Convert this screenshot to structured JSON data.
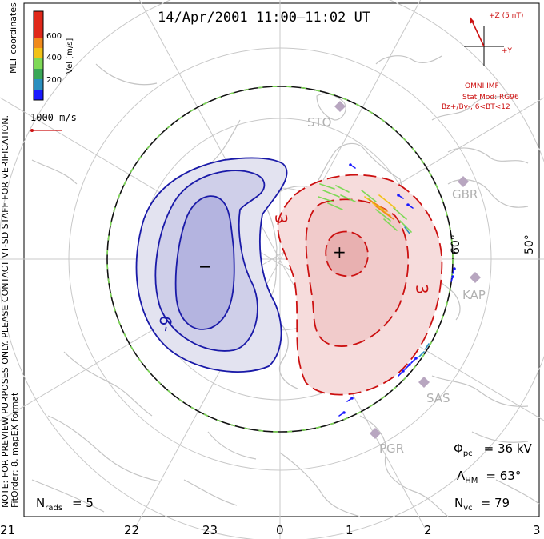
{
  "title": "14/Apr/2001 11:00–11:02 UT",
  "side_notes": {
    "coords": "MLT coordinates",
    "note": "NOTE: FOR PREVIEW PURPOSES ONLY. PLEASE CONTACT VT-SD STAFF FOR VERIFICATION.",
    "fit": "FitOrder: 8, mapEX format"
  },
  "velocity_scale": {
    "label": "Vel [m/s]",
    "ticks": [
      "200",
      "400",
      "600"
    ],
    "colors": [
      "#1a1aff",
      "#2b8fbf",
      "#3aa757",
      "#7ed957",
      "#f2c218",
      "#f08a1c",
      "#e0281a"
    ]
  },
  "reference_vector": {
    "label": "1000 m/s",
    "color": "#cc1111"
  },
  "imf": {
    "z_label": "+Z (5 nT)",
    "y_label": "+Y",
    "source": "OMNI IMF",
    "model_line1": "Stat Mod: RG96",
    "model_line2": "Bz+/By-, 6<BT<12",
    "color": "#cc1111"
  },
  "contours": {
    "negative_label": "-9",
    "positive_label_a": "3",
    "positive_label_b": "3",
    "min_marker": "−",
    "max_marker": "+",
    "negative_color": "#1a1aa8",
    "positive_color": "#cc1111"
  },
  "latitude_labels": [
    "60°",
    "50°"
  ],
  "stations": [
    "STO",
    "GBR",
    "KAP",
    "SAS",
    "PGR"
  ],
  "stats": {
    "phi_symbol": "Φ",
    "phi_sub": "pc",
    "phi_value": "= 36 kV",
    "lambda_symbol": "Λ",
    "lambda_sub": "HM",
    "lambda_value": "= 63°",
    "nvc_symbol": "N",
    "nvc_sub": "vc",
    "nvc_value": "= 79",
    "nrads_symbol": "N",
    "nrads_sub": "rads",
    "nrads_value": "= 5"
  },
  "mlt_ticks": [
    "21",
    "22",
    "23",
    "0",
    "1",
    "2",
    "3"
  ]
}
